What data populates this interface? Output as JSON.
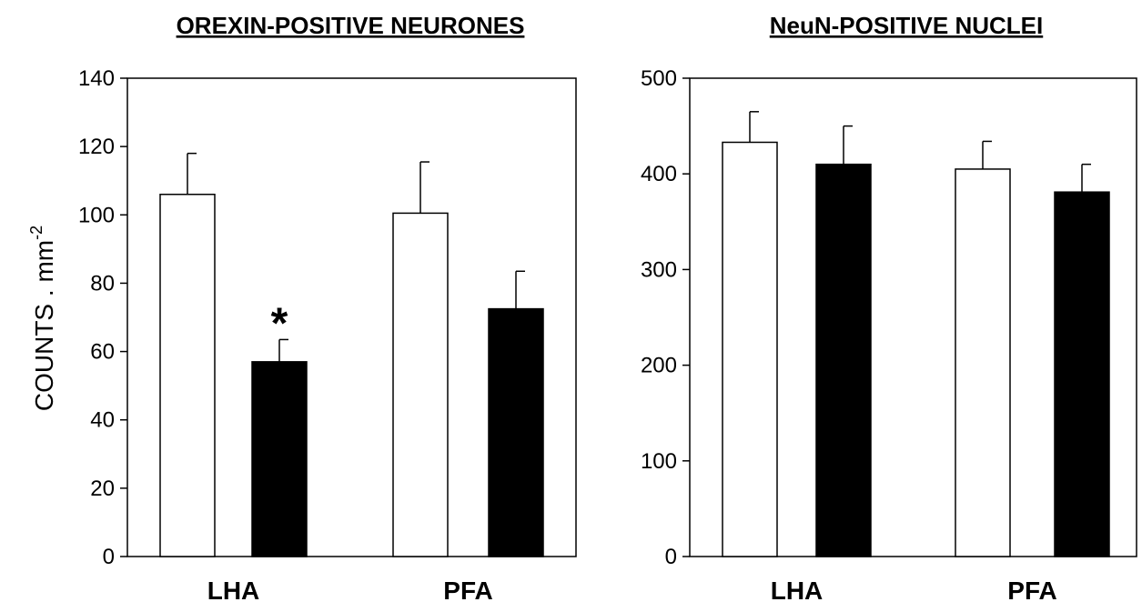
{
  "chart_data": [
    {
      "type": "bar",
      "title": "OREXIN-POSITIVE NEURONES",
      "ylabel": "COUNTS . mm",
      "ylabel_superscript": "-2",
      "ylim": [
        0,
        140
      ],
      "yticks": [
        0,
        20,
        40,
        60,
        80,
        100,
        120,
        140
      ],
      "categories": [
        "LHA",
        "PFA"
      ],
      "series": [
        {
          "color": "#ffffff",
          "values": [
            106,
            100.5
          ],
          "errors": [
            12,
            15
          ]
        },
        {
          "color": "#000000",
          "values": [
            57,
            72.5
          ],
          "errors": [
            6.5,
            11
          ]
        }
      ],
      "annotations": [
        {
          "text": "*",
          "category": "LHA",
          "series_index": 1
        }
      ],
      "grid": false
    },
    {
      "type": "bar",
      "title": "NeuN-POSITIVE NUCLEI",
      "ylabel": "",
      "ylim": [
        0,
        500
      ],
      "yticks": [
        0,
        100,
        200,
        300,
        400,
        500
      ],
      "categories": [
        "LHA",
        "PFA"
      ],
      "series": [
        {
          "color": "#ffffff",
          "values": [
            433,
            405
          ],
          "errors": [
            32,
            29
          ]
        },
        {
          "color": "#000000",
          "values": [
            410,
            381
          ],
          "errors": [
            40,
            29
          ]
        }
      ],
      "annotations": [],
      "grid": false
    }
  ]
}
